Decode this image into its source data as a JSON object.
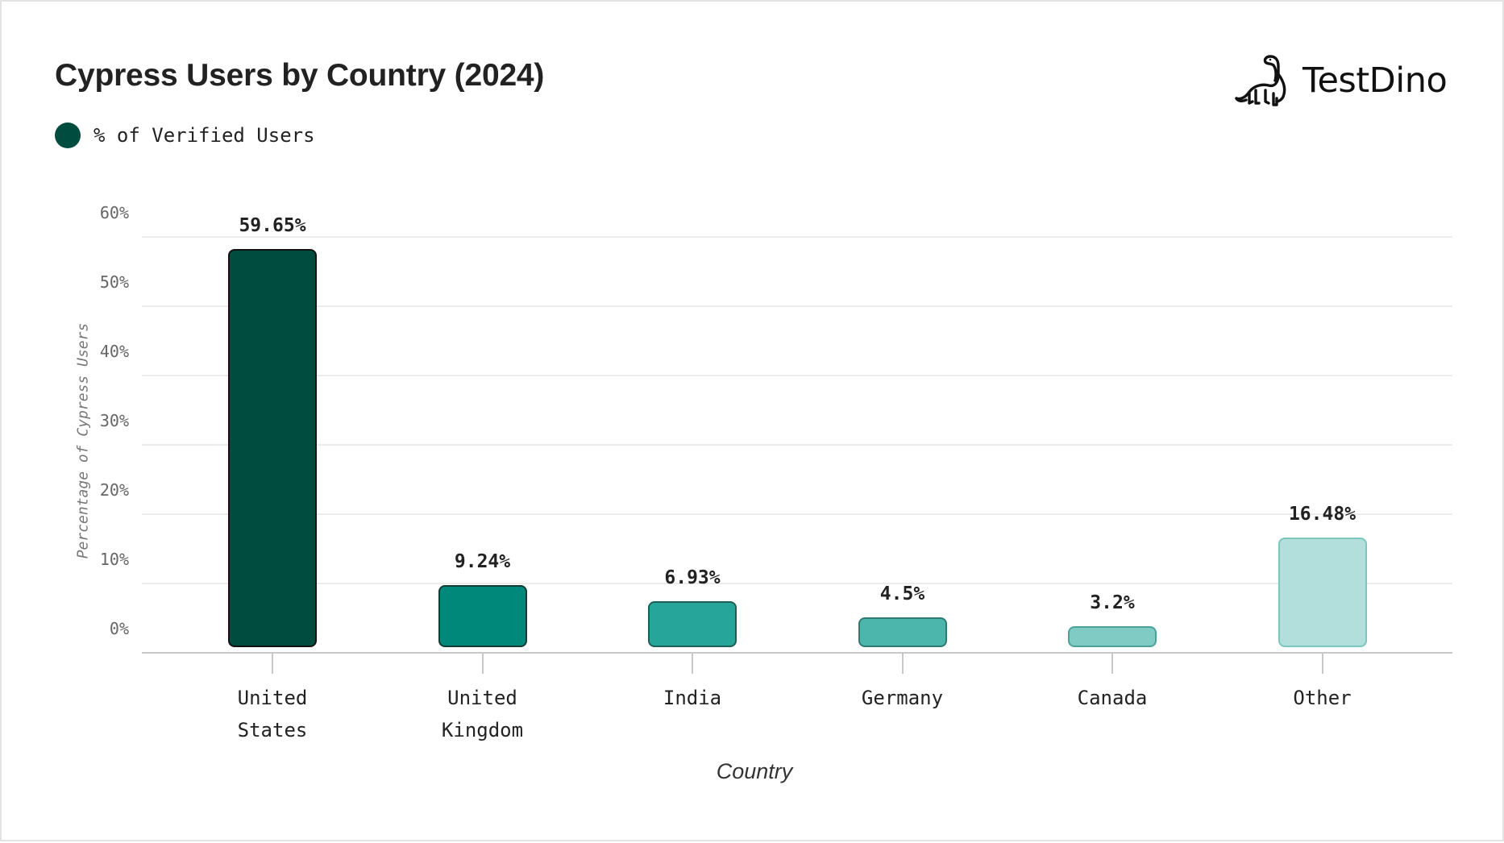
{
  "header": {
    "title": "Cypress Users by Country (2024)",
    "logo_text": "TestDino",
    "logo_icon": "dinosaur-icon"
  },
  "legend": {
    "label": "% of Verified Users",
    "color": "#004d40"
  },
  "axes": {
    "ylabel": "Percentage of Cypress Users",
    "xlabel": "Country",
    "yticks": [
      "0%",
      "10%",
      "20%",
      "30%",
      "40%",
      "50%",
      "60%"
    ]
  },
  "bars": [
    {
      "label_lines": [
        "United",
        "States"
      ],
      "value_label": "59.65%",
      "value": 59.65,
      "fill": "#004d40",
      "stroke": "#111111"
    },
    {
      "label_lines": [
        "United",
        "Kingdom"
      ],
      "value_label": "9.24%",
      "value": 9.24,
      "fill": "#00897b",
      "stroke": "#113c35"
    },
    {
      "label_lines": [
        "India"
      ],
      "value_label": "6.93%",
      "value": 6.93,
      "fill": "#26a69a",
      "stroke": "#1e5e57"
    },
    {
      "label_lines": [
        "Germany"
      ],
      "value_label": "4.5%",
      "value": 4.5,
      "fill": "#4db6ac",
      "stroke": "#2f7a72"
    },
    {
      "label_lines": [
        "Canada"
      ],
      "value_label": "3.2%",
      "value": 3.2,
      "fill": "#80cbc4",
      "stroke": "#4aa39a"
    },
    {
      "label_lines": [
        "Other"
      ],
      "value_label": "16.48%",
      "value": 16.48,
      "fill": "#b2dfdb",
      "stroke": "#7cc6be"
    }
  ],
  "chart_data": {
    "type": "bar",
    "title": "Cypress Users by Country (2024)",
    "categories": [
      "United States",
      "United Kingdom",
      "India",
      "Germany",
      "Canada",
      "Other"
    ],
    "series": [
      {
        "name": "% of Verified Users",
        "values": [
          59.65,
          9.24,
          6.93,
          4.5,
          3.2,
          16.48
        ]
      }
    ],
    "values": [
      59.65,
      9.24,
      6.93,
      4.5,
      3.2,
      16.48
    ],
    "data_labels": [
      "59.65%",
      "9.24%",
      "6.93%",
      "4.5%",
      "3.2%",
      "16.48%"
    ],
    "xlabel": "Country",
    "ylabel": "Percentage of Cypress Users",
    "ylim": [
      0,
      60
    ],
    "yticks": [
      "0%",
      "10%",
      "20%",
      "30%",
      "40%",
      "50%",
      "60%"
    ],
    "grid": true,
    "legend_position": "top-left",
    "colors": [
      "#004d40",
      "#00897b",
      "#26a69a",
      "#4db6ac",
      "#80cbc4",
      "#b2dfdb"
    ]
  }
}
